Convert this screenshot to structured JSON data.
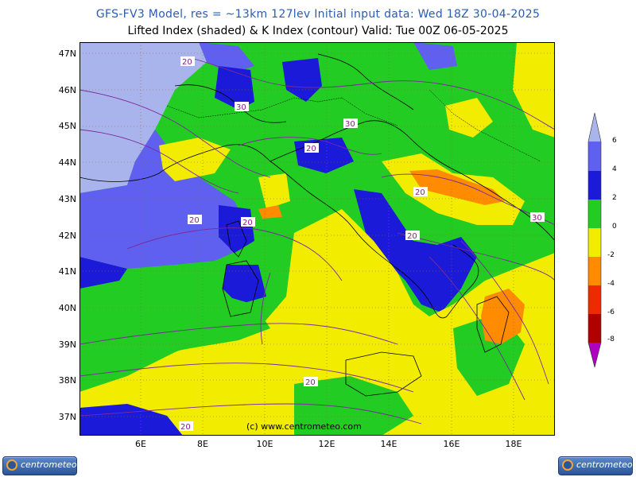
{
  "header": {
    "title_line1": "GFS-FV3 Model, res = ~13km 127lev    Initial input data: Wed 18Z 30-04-2025",
    "title_line2": "Lifted Index (shaded) & K Index (contour) Valid: Tue 00Z 06-05-2025"
  },
  "map": {
    "lat_labels": [
      "47N",
      "46N",
      "45N",
      "44N",
      "43N",
      "42N",
      "41N",
      "40N",
      "39N",
      "38N",
      "37N"
    ],
    "lon_labels": [
      "6E",
      "8E",
      "10E",
      "12E",
      "14E",
      "16E",
      "18E"
    ],
    "contour_labels": [
      "20",
      "30",
      "30",
      "20",
      "20",
      "20",
      "20",
      "30",
      "20",
      "20",
      "20"
    ],
    "watermark": "(c) www.centrometeo.com"
  },
  "colorbar": {
    "labels": [
      "6",
      "4",
      "2",
      "0",
      "-2",
      "-4",
      "-6",
      "-8"
    ],
    "colors": [
      "#aab4ec",
      "#6060f0",
      "#1a1ad8",
      "#22cc22",
      "#f2ec00",
      "#ff8c00",
      "#ee2a00",
      "#b00000",
      "#b000c0"
    ]
  },
  "logos": {
    "left_text": "centrometeo",
    "right_text": "centrometeo"
  }
}
